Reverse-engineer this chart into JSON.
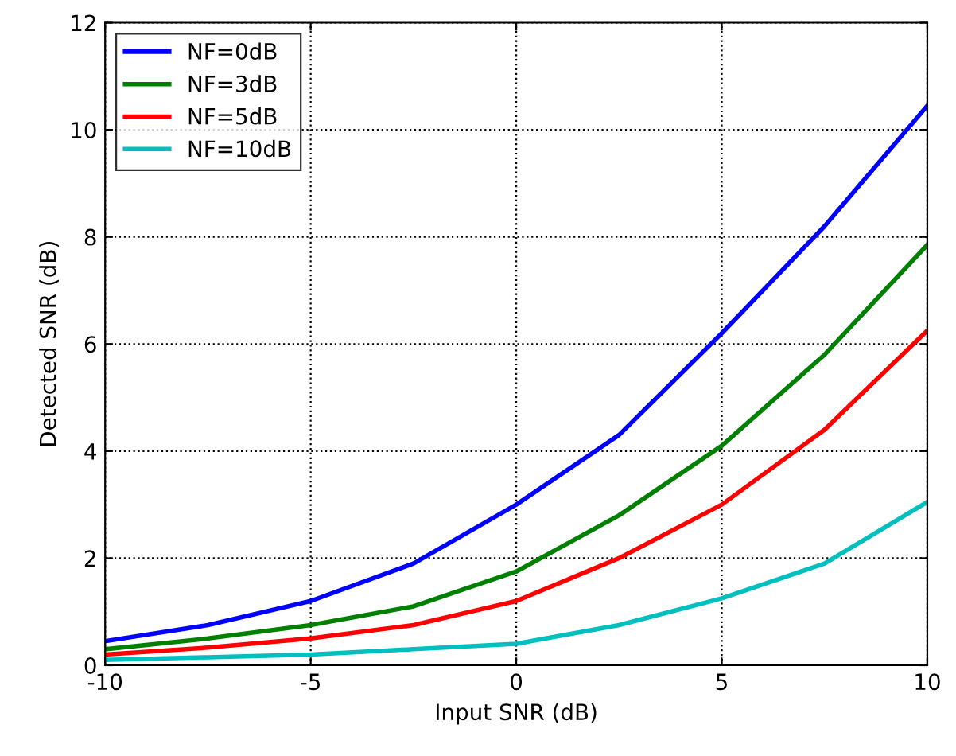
{
  "chart_data": {
    "type": "line",
    "xlabel": "Input SNR (dB)",
    "ylabel": "Detected SNR (dB)",
    "x": [
      -10,
      -7.5,
      -5,
      -2.5,
      0,
      2.5,
      5,
      7.5,
      10
    ],
    "series": [
      {
        "name": "NF=0dB",
        "color": "#0000ff",
        "values": [
          0.45,
          0.75,
          1.2,
          1.9,
          3.0,
          4.3,
          6.2,
          8.2,
          10.45
        ]
      },
      {
        "name": "NF=3dB",
        "color": "#008000",
        "values": [
          0.3,
          0.5,
          0.75,
          1.1,
          1.75,
          2.8,
          4.1,
          5.8,
          7.85
        ]
      },
      {
        "name": "NF=5dB",
        "color": "#ff0000",
        "values": [
          0.2,
          0.33,
          0.5,
          0.75,
          1.2,
          2.0,
          3.0,
          4.4,
          6.25
        ]
      },
      {
        "name": "NF=10dB",
        "color": "#00bfbf",
        "values": [
          0.1,
          0.15,
          0.2,
          0.3,
          0.4,
          0.75,
          1.25,
          1.9,
          3.05
        ]
      }
    ],
    "xlim": [
      -10,
      10
    ],
    "ylim": [
      0,
      12
    ],
    "xticks": [
      -10,
      -5,
      0,
      5,
      10
    ],
    "yticks": [
      0,
      2,
      4,
      6,
      8,
      10,
      12
    ],
    "grid": true,
    "legend": "top left",
    "line_style": "solid",
    "marker": "none"
  }
}
